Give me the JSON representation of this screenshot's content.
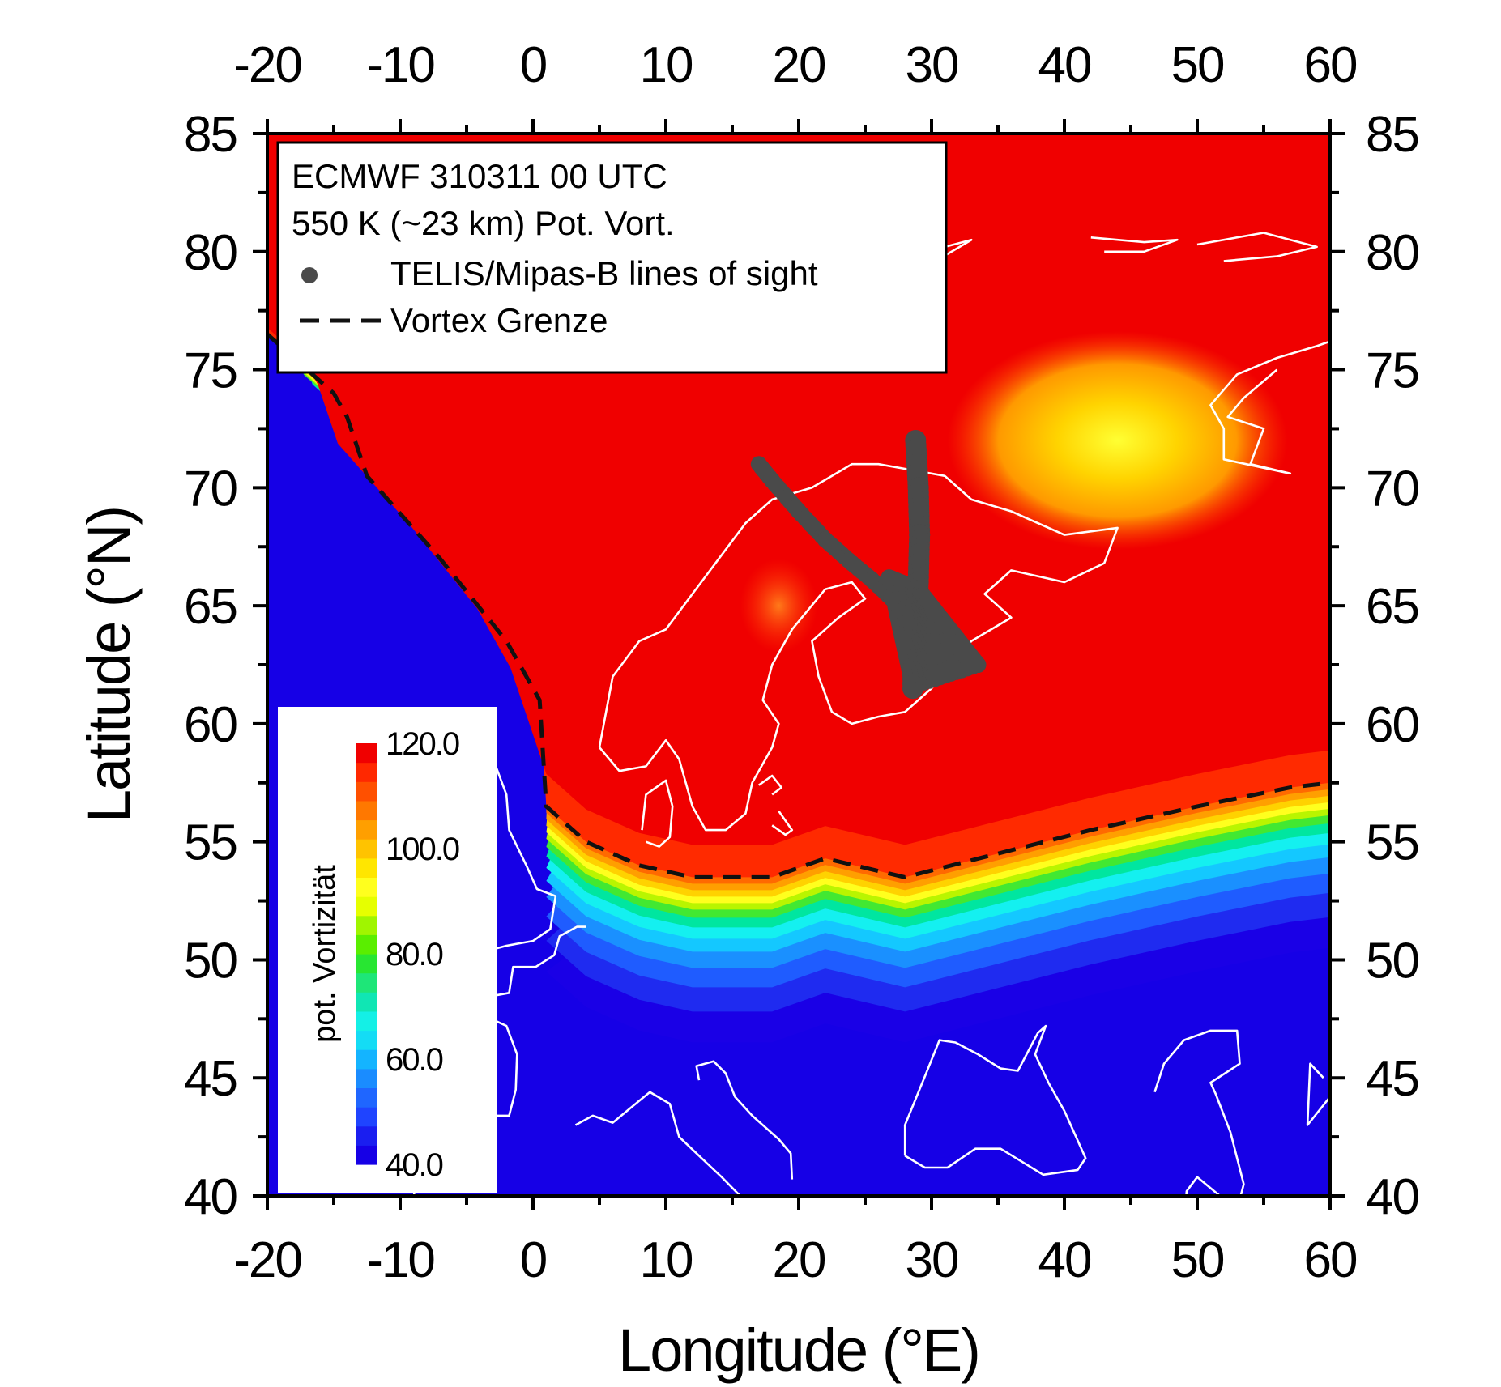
{
  "chart_data": {
    "type": "heatmap",
    "subtype": "filled-contour map",
    "legend": {
      "lines": [
        "ECMWF 310311 00 UTC",
        "550 K (~23 km) Pot. Vort."
      ],
      "entries": [
        {
          "symbol": "dot",
          "label": "TELIS/Mipas-B lines of sight",
          "color": "#4a4a4a"
        },
        {
          "symbol": "dashed-line",
          "label": "Vortex Grenze",
          "color": "#000000"
        }
      ],
      "placement": "top-left"
    },
    "xlabel": "Longitude (°E)",
    "ylabel": "Latitude (°N)",
    "xlim": [
      -20,
      60
    ],
    "ylim": [
      40,
      85
    ],
    "x_ticks": [
      -20,
      -10,
      0,
      10,
      20,
      30,
      40,
      50,
      60
    ],
    "x_tick_labels": [
      "-20",
      "-10",
      "0",
      "10",
      "20",
      "30",
      "40",
      "50",
      "60"
    ],
    "y_ticks": [
      40,
      45,
      50,
      55,
      60,
      65,
      70,
      75,
      80,
      85
    ],
    "y_tick_labels": [
      "40",
      "45",
      "50",
      "55",
      "60",
      "65",
      "70",
      "75",
      "80",
      "85"
    ],
    "colorbar": {
      "title": "pot. Vortizität",
      "range": [
        40,
        120
      ],
      "ticks": [
        40,
        60,
        80,
        100,
        120
      ],
      "tick_labels": [
        "40.0",
        "60.0",
        "80.0",
        "100.0",
        "120.0"
      ],
      "placement": "bottom-left"
    },
    "vortex_boundary": {
      "lon": [
        -20,
        -15,
        -14,
        -12.5,
        -7,
        -2,
        0.5,
        1,
        4,
        8,
        12,
        18,
        22,
        28,
        35,
        42,
        50,
        57,
        60
      ],
      "lat": [
        76.5,
        74,
        73,
        70.5,
        67,
        63.5,
        61,
        56.5,
        55,
        54,
        53.5,
        53.5,
        54.3,
        53.5,
        54.5,
        55.5,
        56.5,
        57.3,
        57.5
      ]
    },
    "lines_of_sight": [
      {
        "lon": [
          17,
          18,
          20,
          22,
          24,
          25.5,
          27,
          28.5,
          30,
          32,
          33.5
        ],
        "lat": [
          71,
          70.3,
          69,
          67.8,
          66.8,
          66.1,
          65.3,
          64.5,
          63.8,
          63,
          62.5
        ]
      },
      {
        "lon": [
          28.8,
          29,
          29.1,
          29,
          28.8,
          28.6,
          28.6
        ],
        "lat": [
          72,
          70,
          68,
          66,
          64,
          62.5,
          61.5
        ]
      }
    ],
    "pv_features": [
      {
        "feature": "high-PV core (vortex)",
        "approx_value": 120,
        "region": "north of vortex boundary"
      },
      {
        "feature": "PV minimum",
        "approx_value": 95,
        "center_lon": 45,
        "center_lat": 72
      },
      {
        "feature": "local PV minimum",
        "approx_value": 110,
        "center_lon": 18.5,
        "center_lat": 65
      },
      {
        "feature": "low-PV region",
        "approx_value": 40,
        "region": "south of ~48°N"
      }
    ]
  }
}
